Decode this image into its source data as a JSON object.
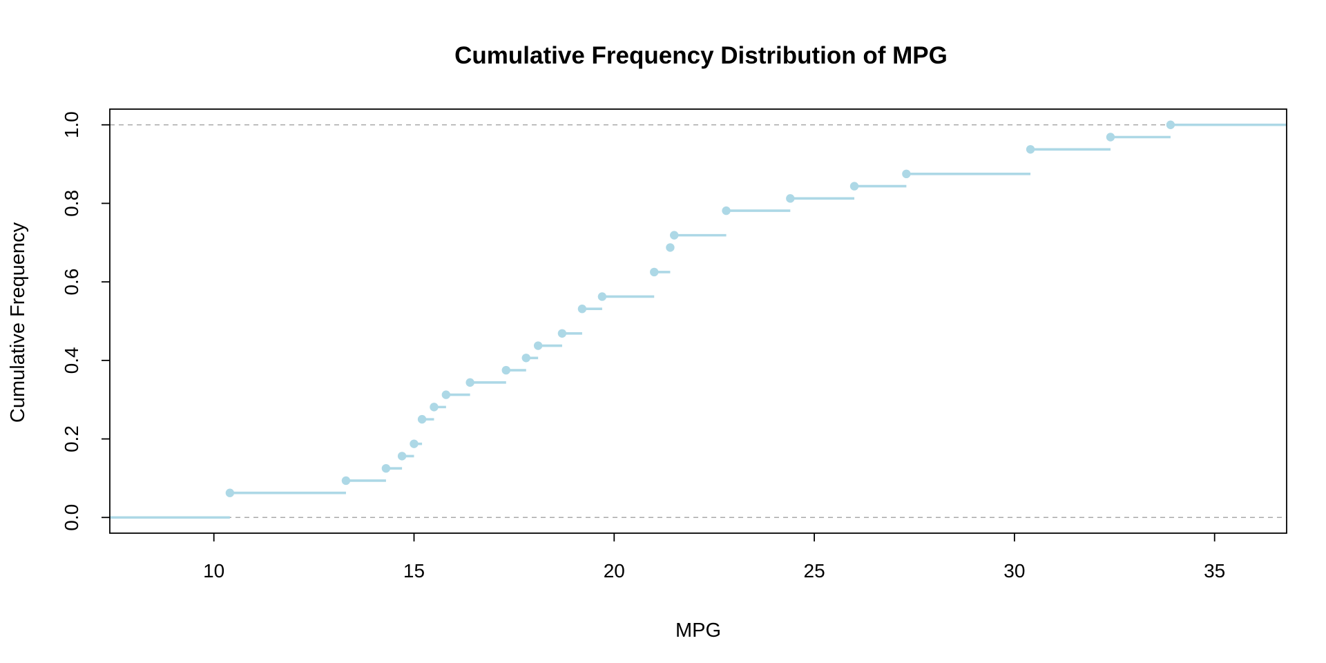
{
  "chart_data": {
    "type": "line",
    "subtype": "step",
    "title": "Cumulative Frequency Distribution of MPG",
    "xlabel": "MPG",
    "ylabel": "Cumulative Frequency",
    "xlim": [
      7.4,
      36.8
    ],
    "ylim": [
      -0.04,
      1.04
    ],
    "xticks": [
      10,
      15,
      20,
      25,
      30,
      35
    ],
    "yticks": [
      "0.0",
      "0.2",
      "0.4",
      "0.6",
      "0.8",
      "1.0"
    ],
    "grid": false,
    "color": "#add8e6",
    "reference_lines": [
      0,
      1
    ],
    "reference_line_color": "#a9a9a9",
    "x": [
      10.4,
      13.3,
      14.3,
      14.7,
      15.0,
      15.2,
      15.5,
      15.8,
      16.4,
      17.3,
      17.8,
      18.1,
      18.7,
      19.2,
      19.7,
      21.0,
      21.4,
      21.5,
      22.8,
      24.4,
      26.0,
      27.3,
      30.4,
      32.4,
      33.9
    ],
    "y": [
      0.0625,
      0.09375,
      0.125,
      0.15625,
      0.1875,
      0.25,
      0.28125,
      0.3125,
      0.34375,
      0.375,
      0.40625,
      0.4375,
      0.46875,
      0.53125,
      0.5625,
      0.625,
      0.6875,
      0.71875,
      0.78125,
      0.8125,
      0.84375,
      0.875,
      0.9375,
      0.96875,
      1.0
    ]
  }
}
